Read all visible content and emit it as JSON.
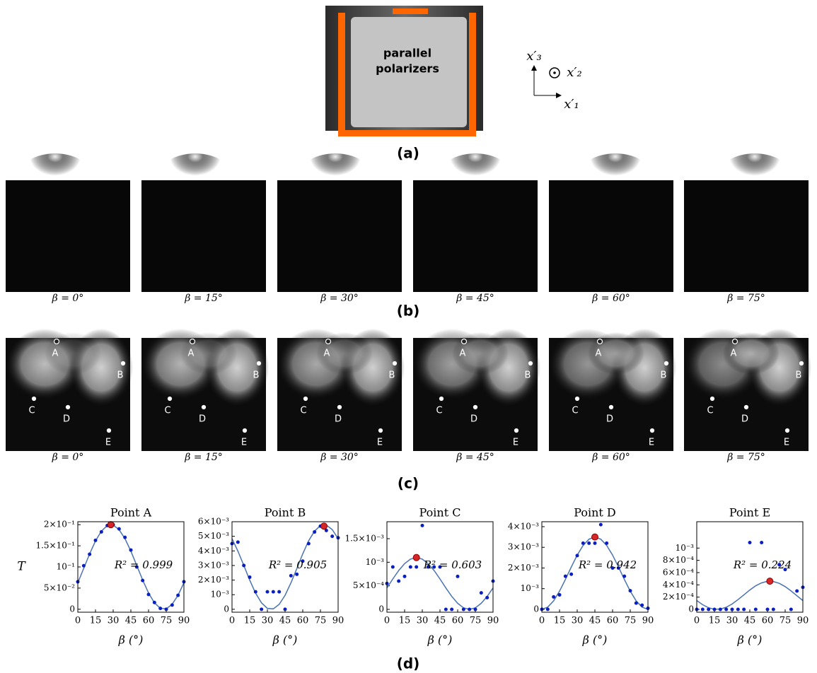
{
  "panel_a": {
    "image_label_1": "parallel",
    "image_label_2": "polarizers",
    "axis_x3": "x′₃",
    "axis_x2": "x′₂",
    "axis_x1": "x′₁",
    "caption": "(a)"
  },
  "panel_b": {
    "caption": "(b)"
  },
  "panel_c": {
    "points": [
      "A",
      "B",
      "C",
      "D",
      "E"
    ],
    "caption": "(c)"
  },
  "beta_labels": [
    "β = 0°",
    "β = 15°",
    "β = 30°",
    "β = 45°",
    "β = 60°",
    "β = 75°"
  ],
  "panel_d": {
    "caption": "(d)"
  },
  "chart_data": [
    {
      "type": "scatter",
      "title": "Point A",
      "xlabel": "β (°)",
      "ylabel": "T",
      "annotation": "R² = 0.999",
      "xlim": [
        0,
        90
      ],
      "xticks": [
        0,
        15,
        30,
        45,
        60,
        75,
        90
      ],
      "ylim": [
        -0.007,
        0.207
      ],
      "yticks": [
        0,
        {
          "value": 0.05,
          "label": "5×10⁻²"
        },
        {
          "value": 0.1,
          "label": "10⁻¹"
        },
        {
          "value": 0.15,
          "label": "1.5×10⁻¹"
        },
        {
          "value": 0.2,
          "label": "2×10⁻¹"
        }
      ],
      "series": [
        {
          "type": "line",
          "color": "#4a72b0",
          "x": [
            0,
            5,
            10,
            15,
            20,
            25,
            30,
            35,
            40,
            45,
            50,
            55,
            60,
            65,
            70,
            75,
            80,
            85,
            90
          ],
          "values": [
            0.0625,
            0.0965,
            0.1309,
            0.1616,
            0.1848,
            0.1978,
            0.199,
            0.1883,
            0.1669,
            0.1375,
            0.1035,
            0.0691,
            0.0384,
            0.0152,
            0.0022,
            0.001,
            0.0117,
            0.0331,
            0.0625
          ]
        },
        {
          "type": "scatter",
          "color": "#0a1fc0",
          "x": [
            0,
            5,
            10,
            15,
            20,
            25,
            30,
            35,
            40,
            45,
            50,
            55,
            60,
            65,
            70,
            75,
            80,
            85,
            90
          ],
          "values": [
            0.065,
            0.103,
            0.13,
            0.163,
            0.183,
            0.198,
            0.2,
            0.19,
            0.17,
            0.14,
            0.1,
            0.068,
            0.035,
            0.016,
            0.002,
            0,
            0.01,
            0.033,
            0.065
          ]
        },
        {
          "type": "highlight",
          "color": "#d62728",
          "x": [
            28
          ],
          "values": [
            0.2
          ]
        }
      ]
    },
    {
      "type": "scatter",
      "title": "Point B",
      "xlabel": "β (°)",
      "annotation": "R² = 0.905",
      "xlim": [
        0,
        90
      ],
      "xticks": [
        0,
        15,
        30,
        45,
        60,
        75,
        90
      ],
      "ylim": [
        -0.0002,
        0.006
      ],
      "yticks": [
        0,
        {
          "value": 0.001,
          "label": "10⁻³"
        },
        {
          "value": 0.002,
          "label": "2×10⁻³"
        },
        {
          "value": 0.003,
          "label": "3×10⁻³"
        },
        {
          "value": 0.004,
          "label": "4×10⁻³"
        },
        {
          "value": 0.005,
          "label": "5×10⁻³"
        },
        {
          "value": 0.006,
          "label": "6×10⁻³"
        }
      ],
      "series": [
        {
          "type": "line",
          "color": "#4a72b0",
          "x": [
            0,
            5,
            10,
            15,
            20,
            25,
            30,
            35,
            40,
            45,
            50,
            55,
            60,
            65,
            70,
            75,
            80,
            85,
            90
          ],
          "values": [
            0.00484,
            0.00399,
            0.003,
            0.002,
            0.00111,
            0.00044,
            6e-05,
            3e-05,
            0.00034,
            0.00096,
            0.00181,
            0.0028,
            0.0038,
            0.00469,
            0.00536,
            0.00574,
            0.00577,
            0.00546,
            0.00484
          ]
        },
        {
          "type": "scatter",
          "color": "#0a1fc0",
          "x": [
            0,
            5,
            10,
            15,
            20,
            25,
            30,
            35,
            40,
            45,
            50,
            55,
            60,
            65,
            70,
            75,
            80,
            85,
            90
          ],
          "values": [
            0.0045,
            0.0046,
            0.003,
            0.0022,
            0.0012,
            0,
            0.0012,
            0.0012,
            0.0012,
            0,
            0.0023,
            0.0024,
            0.0033,
            0.0045,
            0.0053,
            0.0057,
            0.0054,
            0.005,
            0.0049
          ]
        },
        {
          "type": "highlight",
          "color": "#d62728",
          "x": [
            78
          ],
          "values": [
            0.0057
          ]
        }
      ]
    },
    {
      "type": "scatter",
      "title": "Point C",
      "xlabel": "β (°)",
      "annotation": "R² = 0.603",
      "xlim": [
        0,
        90
      ],
      "xticks": [
        0,
        15,
        30,
        45,
        60,
        75,
        90
      ],
      "ylim": [
        -6e-05,
        0.00186
      ],
      "yticks": [
        0,
        {
          "value": 0.0005,
          "label": "5×10⁻⁴"
        },
        {
          "value": 0.001,
          "label": "10⁻³"
        },
        {
          "value": 0.0015,
          "label": "1.5×10⁻³"
        }
      ],
      "series": [
        {
          "type": "line",
          "color": "#4a72b0",
          "x": [
            0,
            5,
            10,
            15,
            20,
            25,
            30,
            35,
            40,
            45,
            50,
            55,
            60,
            65,
            70,
            75,
            80,
            85,
            90
          ],
          "values": [
            0.000455,
            0.000645,
            0.000825,
            0.000971,
            0.001067,
            0.0011,
            0.001067,
            0.000971,
            0.000825,
            0.000645,
            0.000455,
            0.000275,
            0.000129,
            3.3e-05,
            0,
            3.3e-05,
            0.000129,
            0.000275,
            0.000455
          ]
        },
        {
          "type": "scatter",
          "color": "#0a1fc0",
          "x": [
            0,
            5,
            10,
            15,
            20,
            25,
            30,
            35,
            40,
            45,
            50,
            55,
            60,
            65,
            70,
            75,
            80,
            85,
            90
          ],
          "values": [
            0.00055,
            0.0009,
            0.0006,
            0.0007,
            0.0009,
            0.0009,
            0.00178,
            0.0009,
            0.0009,
            0.0009,
            0,
            0,
            0.0007,
            0,
            0,
            0,
            0.00035,
            0.00025,
            0.0006
          ]
        },
        {
          "type": "highlight",
          "color": "#d62728",
          "x": [
            25
          ],
          "values": [
            0.0011
          ]
        }
      ]
    },
    {
      "type": "scatter",
      "title": "Point D",
      "xlabel": "β (°)",
      "annotation": "R² = 0.942",
      "xlim": [
        0,
        90
      ],
      "xticks": [
        0,
        15,
        30,
        45,
        60,
        75,
        90
      ],
      "ylim": [
        -0.00014,
        0.00424
      ],
      "yticks": [
        0,
        {
          "value": 0.001,
          "label": "10⁻³"
        },
        {
          "value": 0.002,
          "label": "2×10⁻³"
        },
        {
          "value": 0.003,
          "label": "3×10⁻³"
        },
        {
          "value": 0.004,
          "label": "4×10⁻³"
        }
      ],
      "series": [
        {
          "type": "line",
          "color": "#4a72b0",
          "x": [
            0,
            5,
            10,
            15,
            20,
            25,
            30,
            35,
            40,
            45,
            50,
            55,
            60,
            65,
            70,
            75,
            80,
            85,
            90
          ],
          "values": [
            0,
            0.000105,
            0.00041,
            0.000875,
            0.001446,
            0.002054,
            0.002625,
            0.00309,
            0.003395,
            0.0035,
            0.003395,
            0.00309,
            0.002625,
            0.002054,
            0.001446,
            0.000875,
            0.00041,
            0.000105,
            0
          ]
        },
        {
          "type": "scatter",
          "color": "#0a1fc0",
          "x": [
            0,
            5,
            10,
            15,
            20,
            25,
            30,
            35,
            40,
            45,
            50,
            55,
            60,
            65,
            70,
            75,
            80,
            85,
            90
          ],
          "values": [
            0,
            0,
            0.0006,
            0.0007,
            0.0016,
            0.0017,
            0.0026,
            0.0032,
            0.0032,
            0.0032,
            0.0041,
            0.0032,
            0.002,
            0.002,
            0.0016,
            0.0009,
            0.0003,
            0.0002,
            5e-05
          ]
        },
        {
          "type": "highlight",
          "color": "#d62728",
          "x": [
            45
          ],
          "values": [
            0.0035
          ]
        }
      ]
    },
    {
      "type": "scatter",
      "title": "Point E",
      "xlabel": "β (°)",
      "annotation": "R² = 0.224",
      "xlim": [
        0,
        90
      ],
      "xticks": [
        0,
        15,
        30,
        45,
        60,
        75,
        90
      ],
      "ylim": [
        -4.6e-05,
        0.00143
      ],
      "yticks": [
        0,
        {
          "value": 0.0002,
          "label": "2×10⁻⁴"
        },
        {
          "value": 0.0004,
          "label": "4×10⁻⁴"
        },
        {
          "value": 0.0006,
          "label": "6×10⁻⁴"
        },
        {
          "value": 0.0008,
          "label": "8×10⁻⁴"
        },
        {
          "value": 0.001,
          "label": "10⁻³"
        }
      ],
      "series": [
        {
          "type": "line",
          "color": "#4a72b0",
          "x": [
            0,
            5,
            10,
            15,
            20,
            25,
            30,
            35,
            40,
            45,
            50,
            55,
            60,
            65,
            70,
            75,
            80,
            85,
            90
          ],
          "values": [
            0.000144,
            7.6e-05,
            2.7e-05,
            2e-06,
            5e-06,
            3.5e-05,
            8.8e-05,
            0.000159,
            0.000238,
            0.000316,
            0.000384,
            0.000433,
            0.000458,
            0.000455,
            0.000425,
            0.000372,
            0.000301,
            0.000222,
            0.000144
          ]
        },
        {
          "type": "scatter",
          "color": "#0a1fc0",
          "x": [
            0,
            5,
            10,
            15,
            20,
            25,
            30,
            35,
            40,
            45,
            50,
            55,
            60,
            65,
            70,
            75,
            80,
            85,
            90
          ],
          "values": [
            0,
            0,
            0,
            0,
            0,
            0,
            0,
            0,
            0,
            0.00109,
            0,
            0.00109,
            0,
            0,
            0.00073,
            0.00065,
            0,
            0.0003,
            0.00036
          ]
        },
        {
          "type": "highlight",
          "color": "#d62728",
          "x": [
            62
          ],
          "values": [
            0.00046
          ]
        }
      ]
    }
  ]
}
